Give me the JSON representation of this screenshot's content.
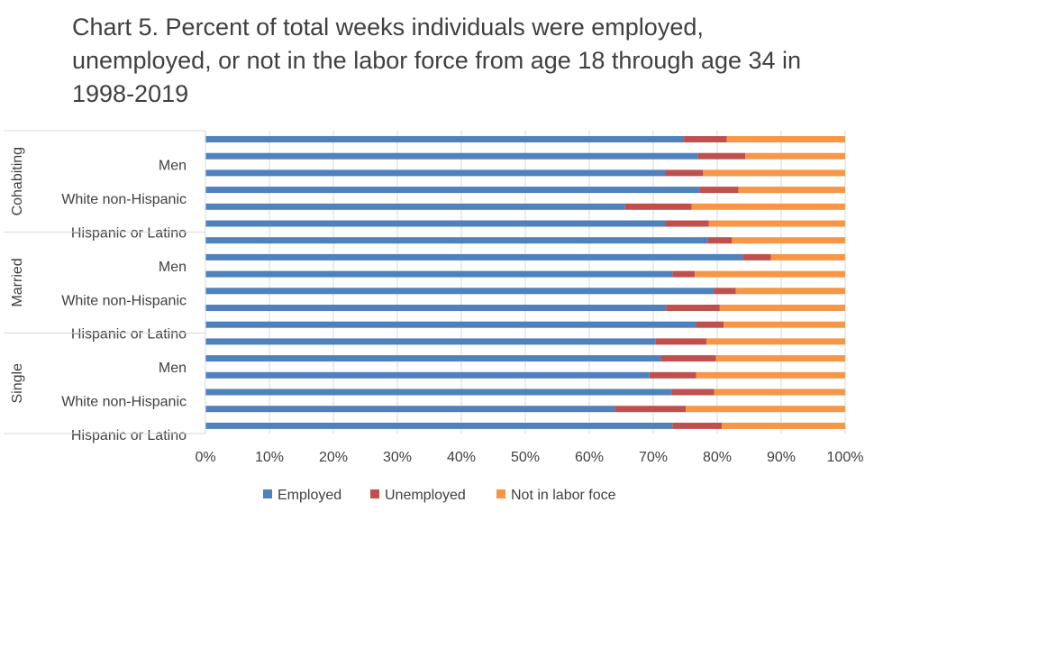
{
  "chart_data": {
    "type": "bar",
    "orientation": "horizontal",
    "stacked": "percent",
    "title": "Chart 5. Percent of total weeks individuals were employed, unemployed, or not in the labor force from age 18 through age 34 in 1998-2019",
    "groups": [
      {
        "name": "Cohabiting",
        "rows": [
          {
            "label": "",
            "values": [
              74.8,
              6.7,
              18.5
            ]
          },
          {
            "label": "Men",
            "values": [
              77.0,
              7.4,
              15.6
            ]
          },
          {
            "label": "",
            "values": [
              71.9,
              5.9,
              22.2
            ]
          },
          {
            "label": "White non-Hispanic",
            "values": [
              77.2,
              6.1,
              16.7
            ]
          },
          {
            "label": "",
            "values": [
              65.6,
              10.4,
              24.0
            ]
          },
          {
            "label": "Hispanic or Latino",
            "values": [
              71.9,
              6.8,
              21.3
            ]
          }
        ]
      },
      {
        "name": "Married",
        "rows": [
          {
            "label": "",
            "values": [
              78.5,
              3.8,
              17.7
            ]
          },
          {
            "label": "Men",
            "values": [
              84.0,
              4.4,
              11.6
            ]
          },
          {
            "label": "",
            "values": [
              73.0,
              3.5,
              23.5
            ]
          },
          {
            "label": "White non-Hispanic",
            "values": [
              79.5,
              3.4,
              17.1
            ]
          },
          {
            "label": "",
            "values": [
              72.0,
              8.4,
              19.6
            ]
          },
          {
            "label": "Hispanic or Latino",
            "values": [
              76.7,
              4.3,
              19.0
            ]
          }
        ]
      },
      {
        "name": "Single",
        "rows": [
          {
            "label": "",
            "values": [
              70.4,
              7.9,
              21.7
            ]
          },
          {
            "label": "Men",
            "values": [
              71.2,
              8.6,
              20.2
            ]
          },
          {
            "label": "",
            "values": [
              69.4,
              7.3,
              23.3
            ]
          },
          {
            "label": "White non-Hispanic",
            "values": [
              72.9,
              6.6,
              20.5
            ]
          },
          {
            "label": "",
            "values": [
              64.0,
              11.1,
              24.9
            ]
          },
          {
            "label": "Hispanic or Latino",
            "values": [
              73.0,
              7.7,
              19.3
            ]
          }
        ]
      }
    ],
    "series": [
      {
        "name": "Employed",
        "color": "#4F81BD"
      },
      {
        "name": "Unemployed",
        "color": "#C0504D"
      },
      {
        "name": "Not in labor foce",
        "color": "#F79646"
      }
    ],
    "xlim": [
      0,
      100
    ],
    "x_ticks": [
      "0%",
      "10%",
      "20%",
      "30%",
      "40%",
      "50%",
      "60%",
      "70%",
      "80%",
      "90%",
      "100%"
    ],
    "grid": true,
    "legend_position": "bottom"
  }
}
